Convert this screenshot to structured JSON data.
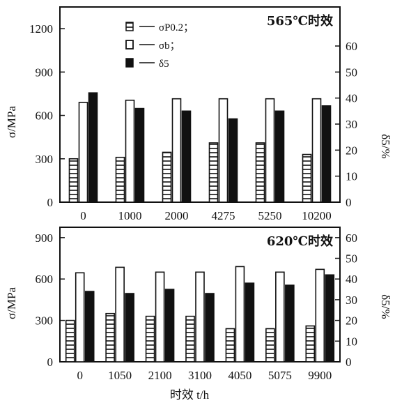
{
  "chart_data": [
    {
      "type": "bar",
      "annotation": "565℃时效",
      "categories": [
        "0",
        "1000",
        "2000",
        "4275",
        "5250",
        "10200"
      ],
      "series": [
        {
          "name": "σP0.2；",
          "axis": "left",
          "pattern": "hatched",
          "values": [
            300,
            310,
            345,
            410,
            410,
            330
          ]
        },
        {
          "name": "σb；",
          "axis": "left",
          "pattern": "hollow",
          "values": [
            690,
            705,
            715,
            715,
            715,
            715
          ]
        },
        {
          "name": "δ5",
          "axis": "right",
          "pattern": "solid",
          "values": [
            42,
            36,
            35,
            32,
            35,
            37
          ]
        }
      ],
      "ylabel": "σ/MPa",
      "y2label": "δ5/%",
      "ylim": [
        0,
        1350
      ],
      "yticks": [
        "0",
        "300",
        "600",
        "900",
        "1200"
      ],
      "y2lim": [
        0,
        75
      ],
      "y2ticks": [
        "0",
        "10",
        "20",
        "30",
        "40",
        "50",
        "60"
      ],
      "legend": {
        "placement": "top-left"
      }
    },
    {
      "type": "bar",
      "annotation": "620℃时效",
      "categories": [
        "0",
        "1050",
        "2100",
        "3100",
        "4050",
        "5075",
        "9900"
      ],
      "series": [
        {
          "name": "σP0.2",
          "axis": "left",
          "pattern": "hatched",
          "values": [
            300,
            350,
            330,
            330,
            240,
            240,
            260
          ]
        },
        {
          "name": "σb",
          "axis": "left",
          "pattern": "hollow",
          "values": [
            645,
            685,
            650,
            650,
            690,
            650,
            670
          ]
        },
        {
          "name": "δ5",
          "axis": "right",
          "pattern": "solid",
          "values": [
            34,
            33,
            35,
            33,
            38,
            37,
            42
          ]
        }
      ],
      "ylabel": "σ/MPa",
      "y2label": "δ5/%",
      "xlabel": "时效 t/h",
      "ylim": [
        0,
        975
      ],
      "yticks": [
        "0",
        "300",
        "600",
        "900"
      ],
      "y2lim": [
        0,
        65
      ],
      "y2ticks": [
        "0",
        "10",
        "20",
        "30",
        "40",
        "50",
        "60"
      ]
    }
  ],
  "colors": {
    "ink": "#111111",
    "background": "#ffffff"
  }
}
